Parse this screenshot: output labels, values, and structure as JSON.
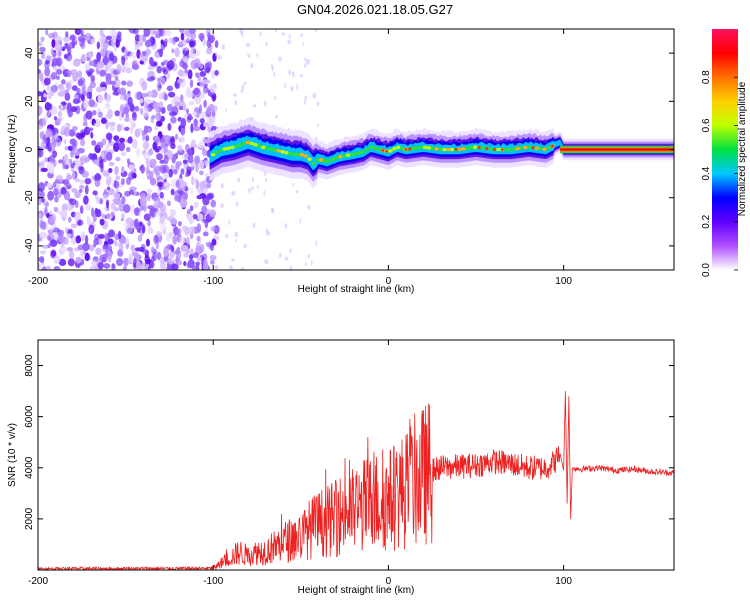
{
  "figure_title": "GN04.2026.021.18.05.G27",
  "chart_data": [
    {
      "type": "heatmap",
      "name": "spectrogram",
      "title": "GN04.2026.021.18.05.G27",
      "xlabel": "Height of straight line (km)",
      "ylabel": "Frequency (Hz)",
      "xlim": [
        -200,
        163
      ],
      "ylim": [
        -50,
        50
      ],
      "xticks": [
        -200,
        -100,
        0,
        100
      ],
      "yticks": [
        -40,
        -20,
        0,
        20,
        40
      ],
      "noise_region": [
        -200,
        -100
      ],
      "ridge": {
        "x": [
          -102,
          -95,
          -88,
          -80,
          -72,
          -66,
          -60,
          -55,
          -50,
          -46,
          -43,
          -40,
          -35,
          -28,
          -20,
          -14,
          -10,
          -5,
          0,
          5,
          10,
          20,
          30,
          40,
          50,
          60,
          70,
          80,
          90,
          95,
          98,
          100,
          110,
          130,
          150,
          163
        ],
        "y": [
          -3,
          0,
          1,
          3,
          1,
          0,
          -1,
          -2,
          -2,
          -3,
          -6,
          -4,
          -5,
          -3,
          -2,
          -1,
          1,
          0,
          -1,
          1,
          0,
          1,
          0,
          0,
          1,
          0,
          0,
          1,
          0,
          2,
          3,
          0,
          0,
          0,
          0,
          0
        ]
      },
      "colorbar": {
        "label": "Normalized spectral amplitude",
        "range": [
          0,
          1
        ],
        "ticks": [
          0,
          0.2,
          0.4,
          0.6,
          0.8
        ],
        "tick_labels": [
          "0.0",
          "0.2",
          "0.4",
          "0.6",
          "0.8"
        ],
        "colors": [
          "#ffffff",
          "#b050ff",
          "#6000ff",
          "#0000ff",
          "#00c8ff",
          "#00e040",
          "#c0ff00",
          "#ffd000",
          "#ff7000",
          "#ff0000",
          "#ff1060"
        ]
      }
    },
    {
      "type": "line",
      "name": "snr",
      "xlabel": "Height of straight line (km)",
      "ylabel": "SNR (10 * v/v)",
      "xlim": [
        -200,
        163
      ],
      "ylim": [
        0,
        9000
      ],
      "xticks": [
        -200,
        -100,
        0,
        100
      ],
      "yticks": [
        2000,
        4000,
        6000,
        8000
      ],
      "series": [
        {
          "name": "SNR",
          "color": "#ee2020",
          "x": [
            -200,
            -180,
            -160,
            -140,
            -120,
            -100,
            -95,
            -90,
            -85,
            -80,
            -75,
            -70,
            -65,
            -60,
            -55,
            -50,
            -45,
            -40,
            -35,
            -30,
            -25,
            -20,
            -15,
            -10,
            -5,
            0,
            5,
            10,
            15,
            20,
            25,
            30,
            40,
            50,
            60,
            70,
            80,
            90,
            95,
            98,
            100,
            101,
            102,
            103,
            104,
            105,
            110,
            120,
            130,
            140,
            150,
            163
          ],
          "y": [
            40,
            60,
            50,
            60,
            60,
            70,
            300,
            500,
            700,
            550,
            700,
            750,
            900,
            1100,
            1200,
            1300,
            1600,
            1800,
            1900,
            2000,
            2300,
            2300,
            2500,
            2600,
            2700,
            2700,
            3000,
            3100,
            3500,
            3700,
            3900,
            4000,
            4050,
            4100,
            4250,
            4150,
            4000,
            4000,
            4250,
            4550,
            3900,
            7000,
            2600,
            6800,
            2000,
            4000,
            3950,
            4000,
            3900,
            3950,
            3850,
            3800
          ]
        }
      ]
    }
  ]
}
